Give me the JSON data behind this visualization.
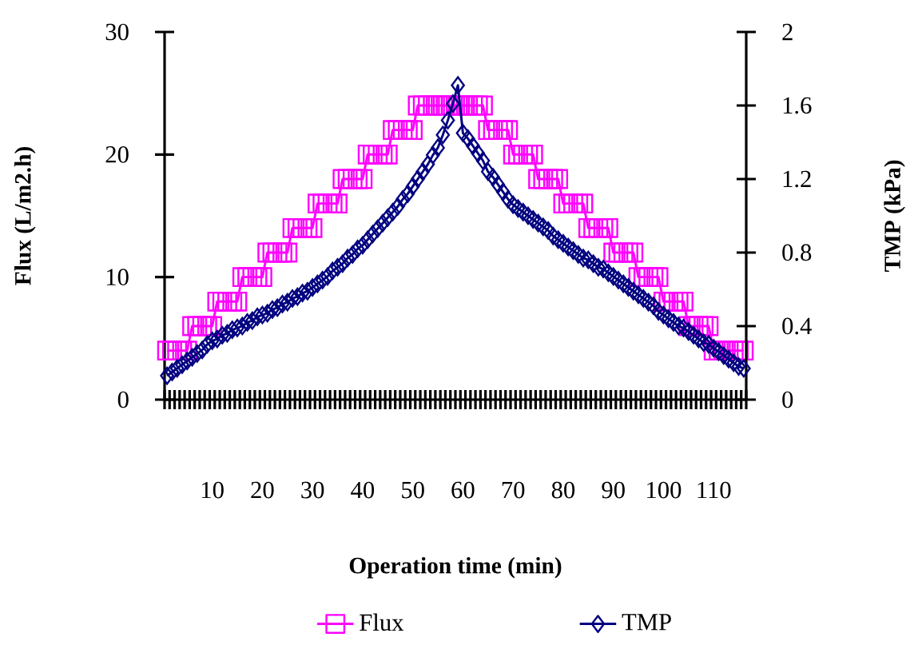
{
  "chart_data": {
    "type": "line",
    "xlabel": "Operation time (min)",
    "ylabel": "Flux (L/m2.h)",
    "y2label": "TMP (kPa)",
    "categories": [
      null,
      null,
      null,
      null,
      null,
      null,
      null,
      null,
      null,
      "10",
      null,
      null,
      null,
      null,
      null,
      null,
      null,
      null,
      null,
      "20",
      null,
      null,
      null,
      null,
      null,
      null,
      null,
      null,
      null,
      "30",
      null,
      null,
      null,
      null,
      null,
      null,
      null,
      null,
      null,
      "40",
      null,
      null,
      null,
      null,
      null,
      null,
      null,
      null,
      null,
      "50",
      null,
      null,
      null,
      null,
      null,
      null,
      null,
      null,
      null,
      "60",
      null,
      null,
      null,
      null,
      null,
      null,
      null,
      null,
      null,
      "70",
      null,
      null,
      null,
      null,
      null,
      null,
      null,
      null,
      null,
      "80",
      null,
      null,
      null,
      null,
      null,
      null,
      null,
      null,
      null,
      "90",
      null,
      null,
      null,
      null,
      null,
      null,
      null,
      null,
      null,
      "100",
      null,
      null,
      null,
      null,
      null,
      null,
      null,
      null,
      null,
      "110",
      null,
      null,
      null,
      null,
      null,
      null
    ],
    "ylim": [
      0,
      30
    ],
    "yticks": [
      0,
      10,
      20,
      30
    ],
    "y2lim": [
      0,
      2
    ],
    "y2ticks": [
      0,
      0.4,
      0.8,
      1.2,
      1.6,
      2
    ],
    "legend": "bottom",
    "grid": false,
    "series": [
      {
        "name": "Flux",
        "color": "#ff00ff",
        "marker": "square",
        "values": [
          4,
          4,
          4,
          4,
          4,
          6,
          6,
          6,
          6,
          6,
          8,
          8,
          8,
          8,
          8,
          10,
          10,
          10,
          10,
          10,
          12,
          12,
          12,
          12,
          12,
          14,
          14,
          14,
          14,
          14,
          16,
          16,
          16,
          16,
          16,
          18,
          18,
          18,
          18,
          18,
          20,
          20,
          20,
          20,
          20,
          22,
          22,
          22,
          22,
          22,
          24,
          24,
          24,
          24,
          24,
          24,
          24,
          24,
          24,
          24,
          24,
          24,
          24,
          24,
          22,
          22,
          22,
          22,
          22,
          20,
          20,
          20,
          20,
          20,
          18,
          18,
          18,
          18,
          18,
          16,
          16,
          16,
          16,
          16,
          14,
          14,
          14,
          14,
          14,
          12,
          12,
          12,
          12,
          12,
          10,
          10,
          10,
          10,
          10,
          8,
          8,
          8,
          8,
          8,
          6,
          6,
          6,
          6,
          6,
          4,
          4,
          4,
          4,
          4,
          4,
          4
        ]
      },
      {
        "name": "TMP",
        "color": "#000080",
        "marker": "diamond",
        "axis": "y2",
        "values": [
          0.13,
          0.15,
          0.17,
          0.19,
          0.21,
          0.23,
          0.25,
          0.27,
          0.3,
          0.32,
          0.33,
          0.35,
          0.36,
          0.38,
          0.39,
          0.4,
          0.42,
          0.43,
          0.45,
          0.46,
          0.47,
          0.49,
          0.5,
          0.52,
          0.53,
          0.55,
          0.56,
          0.58,
          0.59,
          0.61,
          0.63,
          0.65,
          0.67,
          0.7,
          0.72,
          0.74,
          0.77,
          0.79,
          0.82,
          0.84,
          0.87,
          0.9,
          0.93,
          0.96,
          0.99,
          1.02,
          1.05,
          1.09,
          1.12,
          1.16,
          1.2,
          1.24,
          1.28,
          1.33,
          1.37,
          1.44,
          1.52,
          1.61,
          1.71,
          1.45,
          1.42,
          1.38,
          1.34,
          1.3,
          1.24,
          1.21,
          1.17,
          1.13,
          1.09,
          1.06,
          1.04,
          1.02,
          1.0,
          0.98,
          0.96,
          0.94,
          0.92,
          0.89,
          0.87,
          0.85,
          0.83,
          0.81,
          0.79,
          0.77,
          0.76,
          0.74,
          0.72,
          0.71,
          0.69,
          0.67,
          0.65,
          0.63,
          0.61,
          0.59,
          0.57,
          0.55,
          0.53,
          0.51,
          0.48,
          0.46,
          0.44,
          0.42,
          0.4,
          0.39,
          0.37,
          0.35,
          0.33,
          0.31,
          0.3,
          0.28,
          0.26,
          0.24,
          0.22,
          0.2,
          0.18,
          0.17
        ]
      }
    ]
  }
}
